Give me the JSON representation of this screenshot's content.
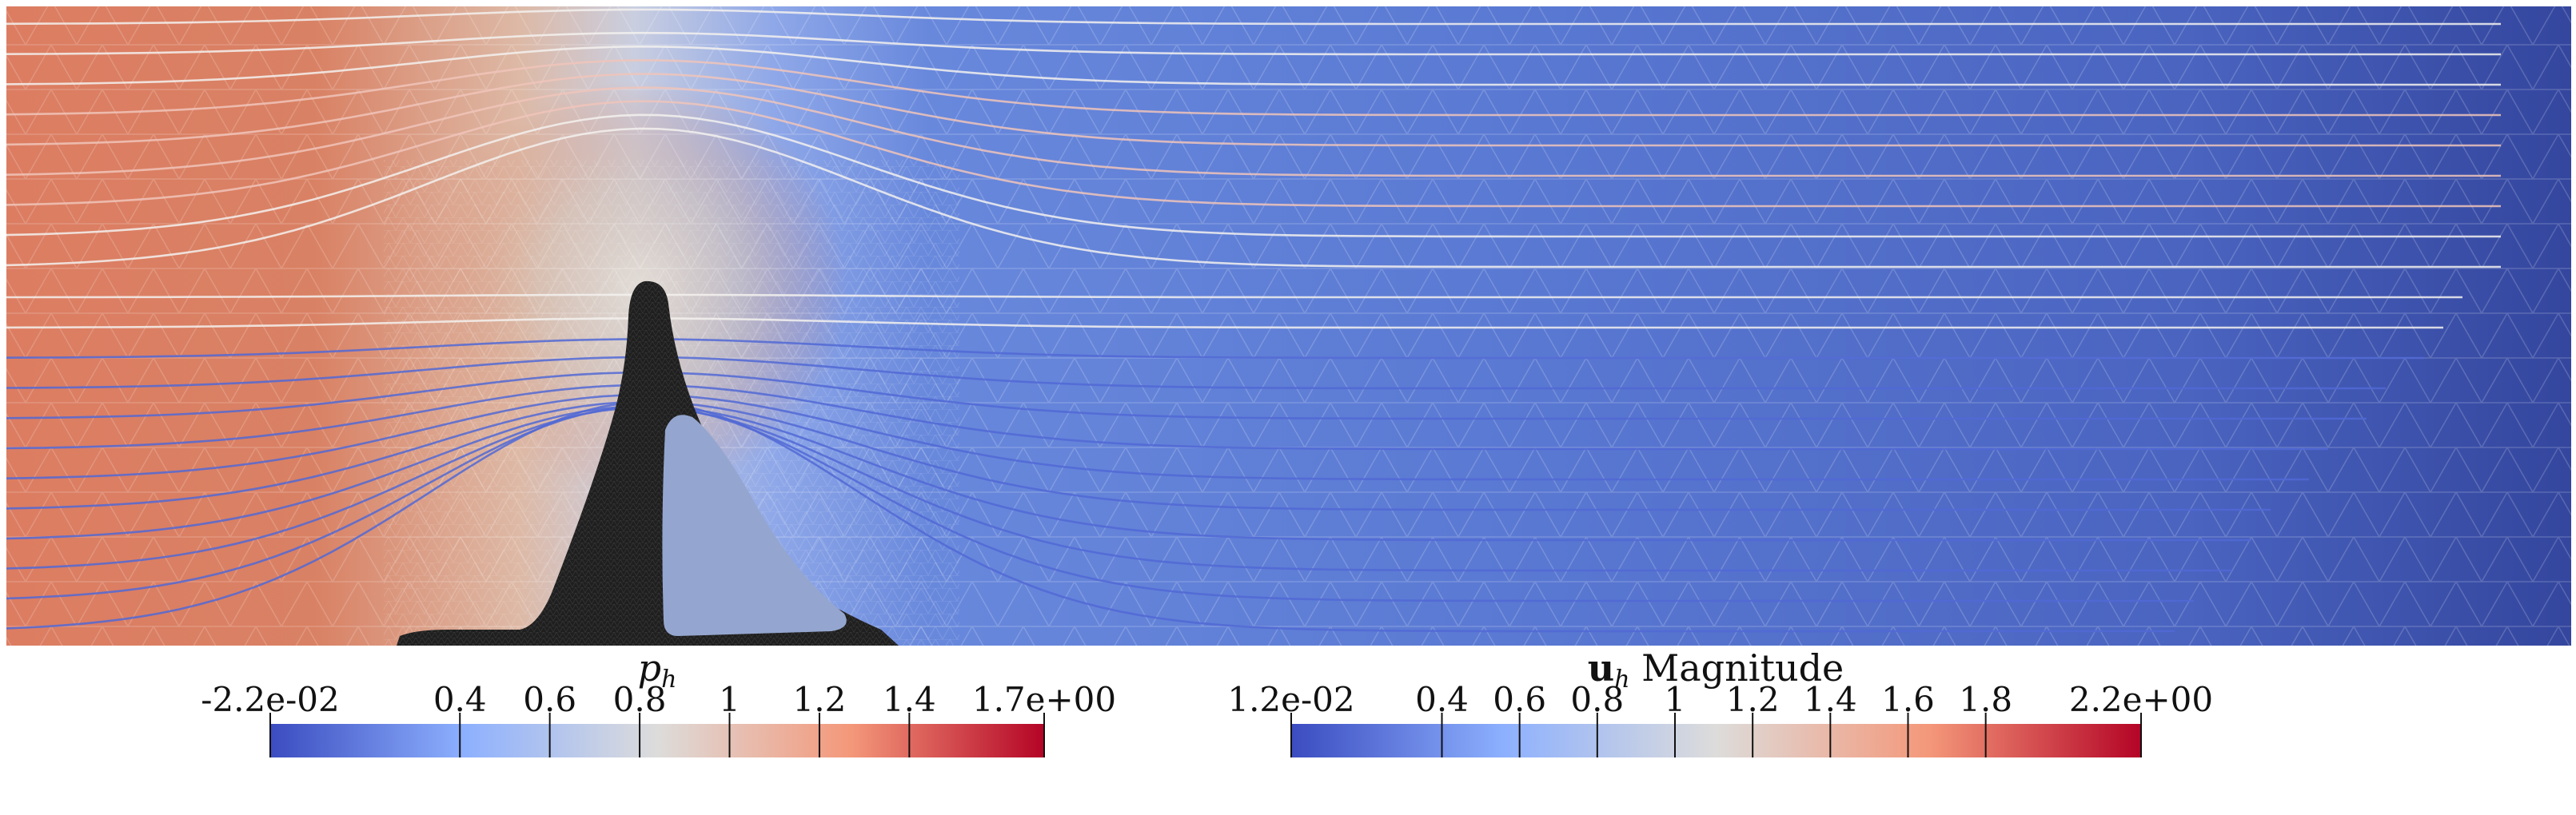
{
  "figure": {
    "background": "#ffffff",
    "field_colors": {
      "high_pressure": "#dc7d62",
      "mid": "#dddcdb",
      "low_pressure": "#5e7fd8",
      "far_field": "#3a4ea8",
      "obstacle": "#1f1f1f",
      "obstacle_hole": "#94a6cf",
      "streamline_light": "#f3f1ee",
      "streamline_blue": "#5168d5",
      "streamline_red": "#c8404a"
    }
  },
  "colorbars": [
    {
      "title_symbol": "p",
      "title_subscript": "h",
      "title_rest": "",
      "min": -0.022,
      "max": 1.7,
      "ticks": [
        {
          "value": -0.022,
          "label": "-2.2e-02"
        },
        {
          "value": 0.4,
          "label": "0.4"
        },
        {
          "value": 0.6,
          "label": "0.6"
        },
        {
          "value": 0.8,
          "label": "0.8"
        },
        {
          "value": 1.0,
          "label": "1"
        },
        {
          "value": 1.2,
          "label": "1.2"
        },
        {
          "value": 1.4,
          "label": "1.4"
        },
        {
          "value": 1.7,
          "label": "1.7e+00"
        }
      ],
      "colormap": [
        "#3b4cc0",
        "#8db0fe",
        "#dddcdb",
        "#f4987a",
        "#b40426"
      ]
    },
    {
      "title_symbol": "u",
      "title_subscript": "h",
      "title_rest": " Magnitude",
      "min": 0.012,
      "max": 2.2,
      "ticks": [
        {
          "value": 0.012,
          "label": "1.2e-02"
        },
        {
          "value": 0.4,
          "label": "0.4"
        },
        {
          "value": 0.6,
          "label": "0.6"
        },
        {
          "value": 0.8,
          "label": "0.8"
        },
        {
          "value": 1.0,
          "label": "1"
        },
        {
          "value": 1.2,
          "label": "1.2"
        },
        {
          "value": 1.4,
          "label": "1.4"
        },
        {
          "value": 1.6,
          "label": "1.6"
        },
        {
          "value": 1.8,
          "label": "1.8"
        },
        {
          "value": 2.2,
          "label": "2.2e+00"
        }
      ],
      "colormap": [
        "#3b4cc0",
        "#8db0fe",
        "#dddcdb",
        "#f4987a",
        "#b40426"
      ]
    }
  ]
}
